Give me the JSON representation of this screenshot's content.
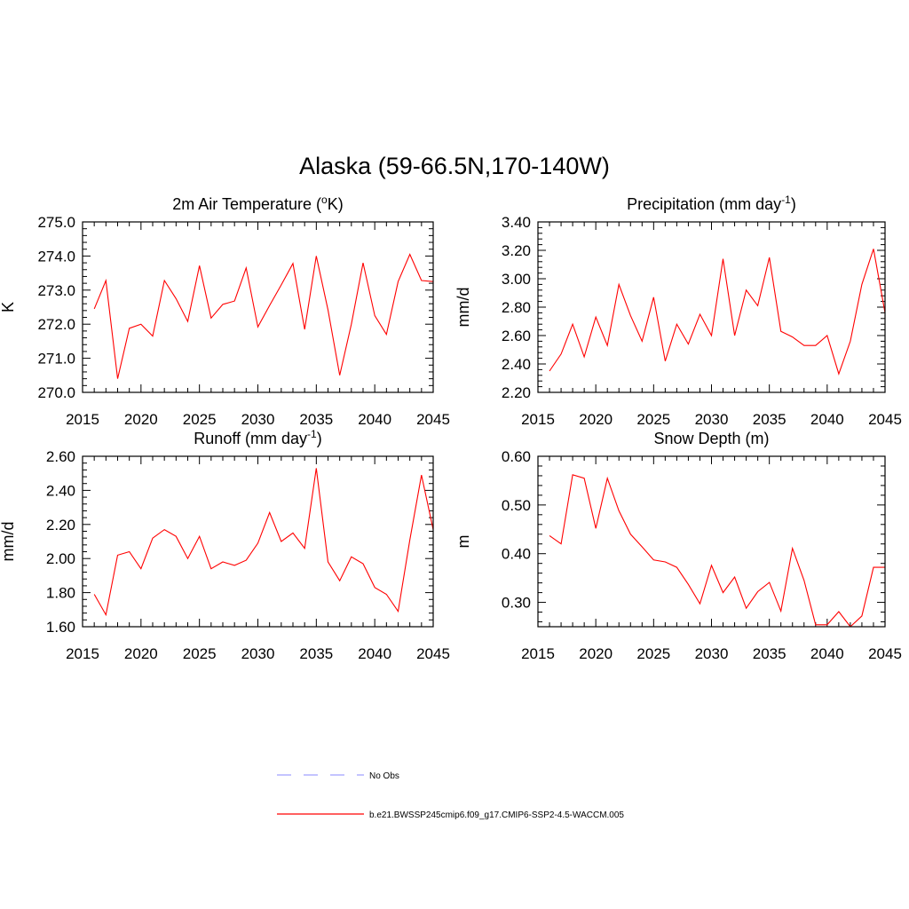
{
  "main_title": "Alaska (59-66.5N,170-140W)",
  "legend": {
    "obs": {
      "label": "No Obs",
      "color": "#a0a0ff"
    },
    "model": {
      "label": "b.e21.BWSSP245cmip6.f09_g17.CMIP6-SSP2-4.5-WACCM.005",
      "color": "#ff0000"
    }
  },
  "chart_data": [
    {
      "type": "line",
      "title_main": "2m Air Temperature (",
      "title_sup": "o",
      "title_tail": "K)",
      "ylabel": "K",
      "xlim": [
        2015,
        2045
      ],
      "ylim": [
        270.0,
        275.0
      ],
      "xticks": [
        "2015",
        "2020",
        "2025",
        "2030",
        "2035",
        "2040",
        "2045"
      ],
      "yticks": [
        "270.0",
        "271.0",
        "272.0",
        "273.0",
        "274.0",
        "275.0"
      ],
      "x": [
        2016,
        2017,
        2018,
        2019,
        2020,
        2021,
        2022,
        2023,
        2024,
        2025,
        2026,
        2027,
        2028,
        2029,
        2030,
        2031,
        2032,
        2033,
        2034,
        2035,
        2036,
        2037,
        2038,
        2039,
        2040,
        2041,
        2042,
        2043,
        2044,
        2045
      ],
      "series": [
        {
          "color": "#ff0000",
          "values": [
            272.45,
            273.28,
            270.4,
            271.88,
            272.0,
            271.65,
            273.28,
            272.75,
            272.08,
            273.72,
            272.18,
            272.58,
            272.68,
            273.65,
            271.92,
            272.55,
            273.15,
            273.78,
            271.85,
            274.0,
            272.42,
            270.5,
            272.0,
            273.8,
            272.25,
            271.7,
            273.25,
            274.05,
            273.28,
            273.25
          ]
        }
      ]
    },
    {
      "type": "line",
      "title_main": "Precipitation (mm day",
      "title_sup": "-1",
      "title_tail": ")",
      "ylabel": "mm/d",
      "xlim": [
        2015,
        2045
      ],
      "ylim": [
        2.2,
        3.4
      ],
      "xticks": [
        "2015",
        "2020",
        "2025",
        "2030",
        "2035",
        "2040",
        "2045"
      ],
      "yticks": [
        "2.20",
        "2.40",
        "2.60",
        "2.80",
        "3.00",
        "3.20",
        "3.40"
      ],
      "x": [
        2016,
        2017,
        2018,
        2019,
        2020,
        2021,
        2022,
        2023,
        2024,
        2025,
        2026,
        2027,
        2028,
        2029,
        2030,
        2031,
        2032,
        2033,
        2034,
        2035,
        2036,
        2037,
        2038,
        2039,
        2040,
        2041,
        2042,
        2043,
        2044,
        2045
      ],
      "series": [
        {
          "color": "#ff0000",
          "values": [
            2.35,
            2.47,
            2.68,
            2.45,
            2.73,
            2.53,
            2.96,
            2.74,
            2.56,
            2.87,
            2.42,
            2.68,
            2.54,
            2.75,
            2.6,
            3.14,
            2.6,
            2.92,
            2.81,
            3.15,
            2.63,
            2.59,
            2.53,
            2.53,
            2.6,
            2.33,
            2.56,
            2.96,
            3.21,
            2.76
          ]
        }
      ]
    },
    {
      "type": "line",
      "title_main": "Runoff (mm day",
      "title_sup": "-1",
      "title_tail": ")",
      "ylabel": "mm/d",
      "xlim": [
        2015,
        2045
      ],
      "ylim": [
        1.6,
        2.6
      ],
      "xticks": [
        "2015",
        "2020",
        "2025",
        "2030",
        "2035",
        "2040",
        "2045"
      ],
      "yticks": [
        "1.60",
        "1.80",
        "2.00",
        "2.20",
        "2.40",
        "2.60"
      ],
      "x": [
        2016,
        2017,
        2018,
        2019,
        2020,
        2021,
        2022,
        2023,
        2024,
        2025,
        2026,
        2027,
        2028,
        2029,
        2030,
        2031,
        2032,
        2033,
        2034,
        2035,
        2036,
        2037,
        2038,
        2039,
        2040,
        2041,
        2042,
        2043,
        2044,
        2045
      ],
      "series": [
        {
          "color": "#ff0000",
          "values": [
            1.79,
            1.67,
            2.02,
            2.04,
            1.94,
            2.12,
            2.17,
            2.13,
            2.0,
            2.13,
            1.94,
            1.98,
            1.96,
            1.99,
            2.09,
            2.27,
            2.1,
            2.15,
            2.06,
            2.53,
            1.98,
            1.87,
            2.01,
            1.97,
            1.83,
            1.79,
            1.69,
            2.11,
            2.49,
            2.17
          ]
        }
      ]
    },
    {
      "type": "line",
      "title_main": "Snow Depth (m)",
      "title_sup": "",
      "title_tail": "",
      "ylabel": "m",
      "xlim": [
        2015,
        2045
      ],
      "ylim": [
        0.25,
        0.6
      ],
      "xticks": [
        "2015",
        "2020",
        "2025",
        "2030",
        "2035",
        "2040",
        "2045"
      ],
      "yticks": [
        "0.30",
        "0.40",
        "0.50",
        "0.60"
      ],
      "ytick_values": [
        0.3,
        0.4,
        0.5,
        0.6
      ],
      "x": [
        2016,
        2017,
        2018,
        2019,
        2020,
        2021,
        2022,
        2023,
        2024,
        2025,
        2026,
        2027,
        2028,
        2029,
        2030,
        2031,
        2032,
        2033,
        2034,
        2035,
        2036,
        2037,
        2038,
        2039,
        2040,
        2041,
        2042,
        2043,
        2044,
        2045
      ],
      "series": [
        {
          "color": "#ff0000",
          "values": [
            0.437,
            0.42,
            0.562,
            0.555,
            0.452,
            0.555,
            0.488,
            0.44,
            0.414,
            0.387,
            0.383,
            0.372,
            0.337,
            0.297,
            0.376,
            0.32,
            0.352,
            0.288,
            0.322,
            0.341,
            0.282,
            0.411,
            0.345,
            0.254,
            0.254,
            0.281,
            0.25,
            0.272,
            0.372,
            0.372
          ]
        }
      ]
    }
  ]
}
